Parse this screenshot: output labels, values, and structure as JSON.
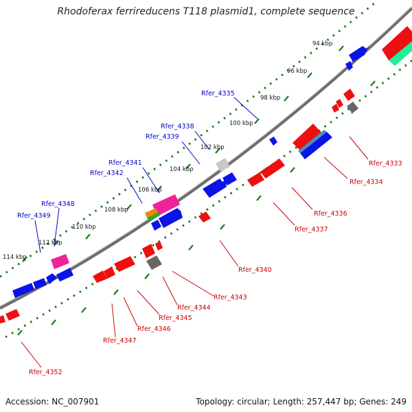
{
  "title": "Rhodoferax ferrireducens T118 plasmid1, complete sequence",
  "footer": {
    "accession": "Accession: NC_007901",
    "topology": "Topology: circular; Length: 257,447 bp; Genes: 249"
  },
  "colors": {
    "forward_label": "#0000cc",
    "reverse_label": "#cc0000",
    "backbone": "#777777",
    "tick": "#1a7a1a",
    "gene_blue": "#0a14e6",
    "gene_red": "#ee1010",
    "gene_pink": "#ee2299",
    "gene_grey": "#666666",
    "gene_teal": "#22ee99"
  },
  "scale_labels": [
    "94 kbp",
    "96 kbp",
    "98 kbp",
    "100 kbp",
    "102 kbp",
    "104 kbp",
    "106 kbp",
    "108 kbp",
    "110 kbp",
    "112 kbp",
    "114 kbp"
  ],
  "forward_gene_labels": [
    "Rfer_4335",
    "Rfer_4338",
    "Rfer_4339",
    "Rfer_4341",
    "Rfer_4342",
    "Rfer_4348",
    "Rfer_4349"
  ],
  "reverse_gene_labels": [
    "Rfer_4333",
    "Rfer_4334",
    "Rfer_4336",
    "Rfer_4337",
    "Rfer_4340",
    "Rfer_4343",
    "Rfer_4344",
    "Rfer_4345",
    "Rfer_4346",
    "Rfer_4347",
    "Rfer_4352"
  ]
}
